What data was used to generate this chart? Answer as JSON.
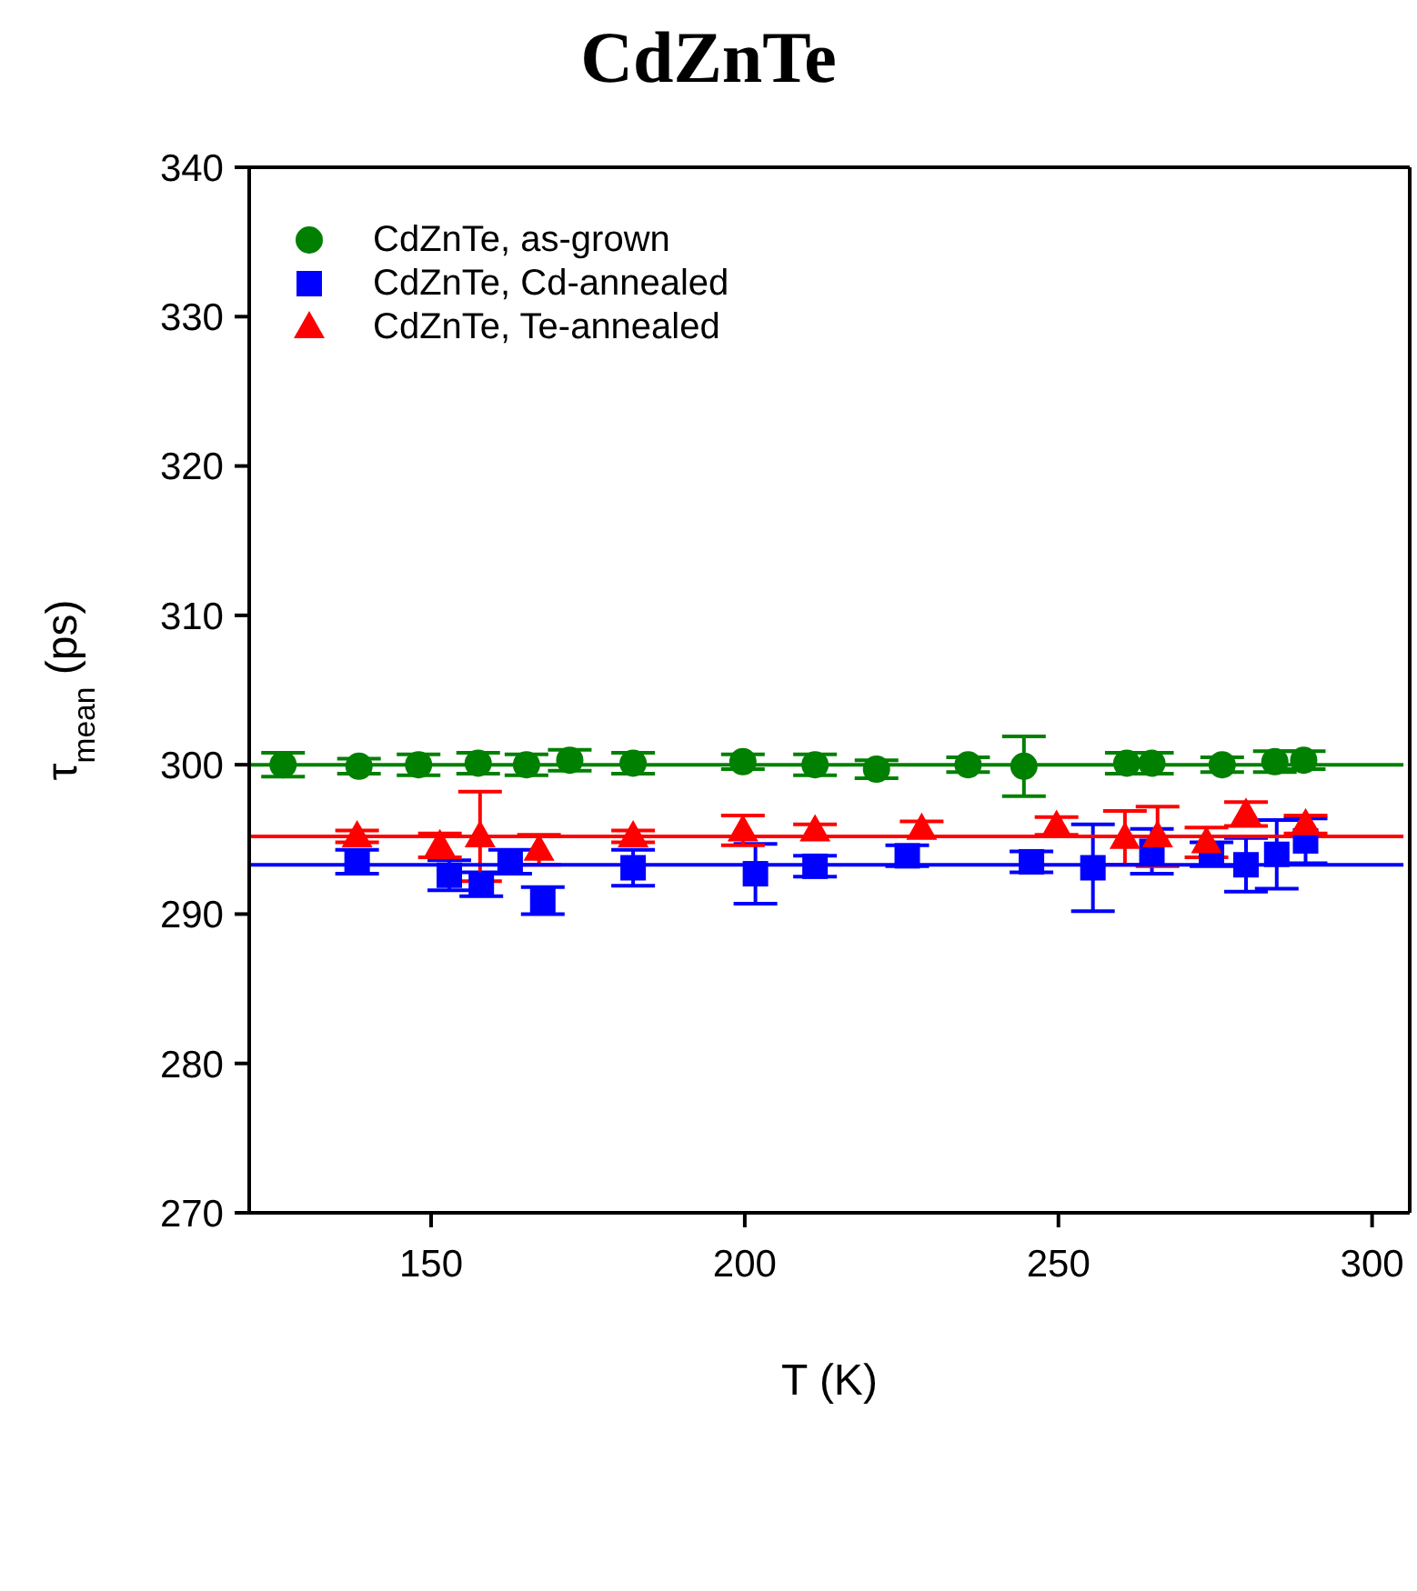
{
  "chart_data": {
    "type": "scatter",
    "title": "CdZnTe",
    "xlabel": "T (K)",
    "ylabel": "τ$_{mean}$ (ps)",
    "xlim": [
      121,
      306
    ],
    "xticks": [
      150,
      200,
      250,
      300
    ],
    "ylim": [
      270,
      340
    ],
    "yticks": [
      270,
      280,
      290,
      300,
      310,
      320,
      330,
      340
    ],
    "grid": false,
    "legend": "top left",
    "series": [
      {
        "name": "CdZnTe, as-grown",
        "color": "#008000",
        "marker": "circle",
        "x": [
          126.4,
          138.5,
          148,
          157.5,
          165.2,
          172.1,
          182.2,
          199.7,
          211.2,
          221,
          235.6,
          244.5,
          260.9,
          264.9,
          276.1,
          284.5,
          289.1
        ],
        "values": [
          300,
          299.9,
          300,
          300.1,
          300,
          300.3,
          300.1,
          300.2,
          300,
          299.7,
          300,
          299.9,
          300.1,
          300.1,
          300,
          300.2,
          300.3
        ],
        "errors": [
          0.8,
          0.5,
          0.7,
          0.7,
          0.7,
          0.7,
          0.7,
          0.5,
          0.7,
          0.6,
          0.5,
          2,
          0.7,
          0.7,
          0.5,
          0.7,
          0.6
        ]
      },
      {
        "name": "CdZnTe, Cd-annealed",
        "color": "#0000ff",
        "marker": "square",
        "x": [
          138.2,
          152.9,
          158,
          162.6,
          167.8,
          182.2,
          201.7,
          211.2,
          225.9,
          245.7,
          255.5,
          264.9,
          274.4,
          279.9,
          284.8,
          289.4
        ],
        "values": [
          293.5,
          292.6,
          292,
          293.5,
          290.9,
          293.1,
          292.7,
          293.2,
          293.9,
          293.5,
          293.1,
          294.2,
          294,
          293.3,
          294,
          294.9
        ],
        "errors": [
          0.8,
          1,
          0.8,
          0.8,
          0.9,
          1.2,
          2,
          0.7,
          0.7,
          0.7,
          2.9,
          1.5,
          0.8,
          1.8,
          2.3,
          1.5
        ]
      },
      {
        "name": "CdZnTe, Te-annealed",
        "color": "#ff0000",
        "marker": "triangle",
        "x": [
          138.2,
          151.4,
          157.8,
          167.2,
          182.2,
          199.7,
          211.2,
          228.2,
          249.7,
          260.6,
          265.8,
          273.6,
          279.9,
          289.4
        ],
        "values": [
          295.2,
          294.6,
          295.2,
          294.3,
          295.2,
          295.6,
          295.6,
          295.7,
          295.9,
          295.1,
          295.2,
          294.8,
          296.7,
          296
        ],
        "errors": [
          0.4,
          0.8,
          3,
          1,
          0.4,
          1,
          0.4,
          0.5,
          0.6,
          1.8,
          2,
          1,
          0.8,
          0.6
        ]
      },
      {
        "type": "line",
        "color": "#008000",
        "x": [
          121,
          305
        ],
        "values": [
          300,
          300
        ]
      },
      {
        "type": "line",
        "color": "#0000ff",
        "x": [
          121,
          305
        ],
        "values": [
          293.3,
          293.3
        ]
      },
      {
        "type": "line",
        "color": "#ff0000",
        "x": [
          121,
          305
        ],
        "values": [
          295.2,
          295.2
        ]
      }
    ]
  }
}
